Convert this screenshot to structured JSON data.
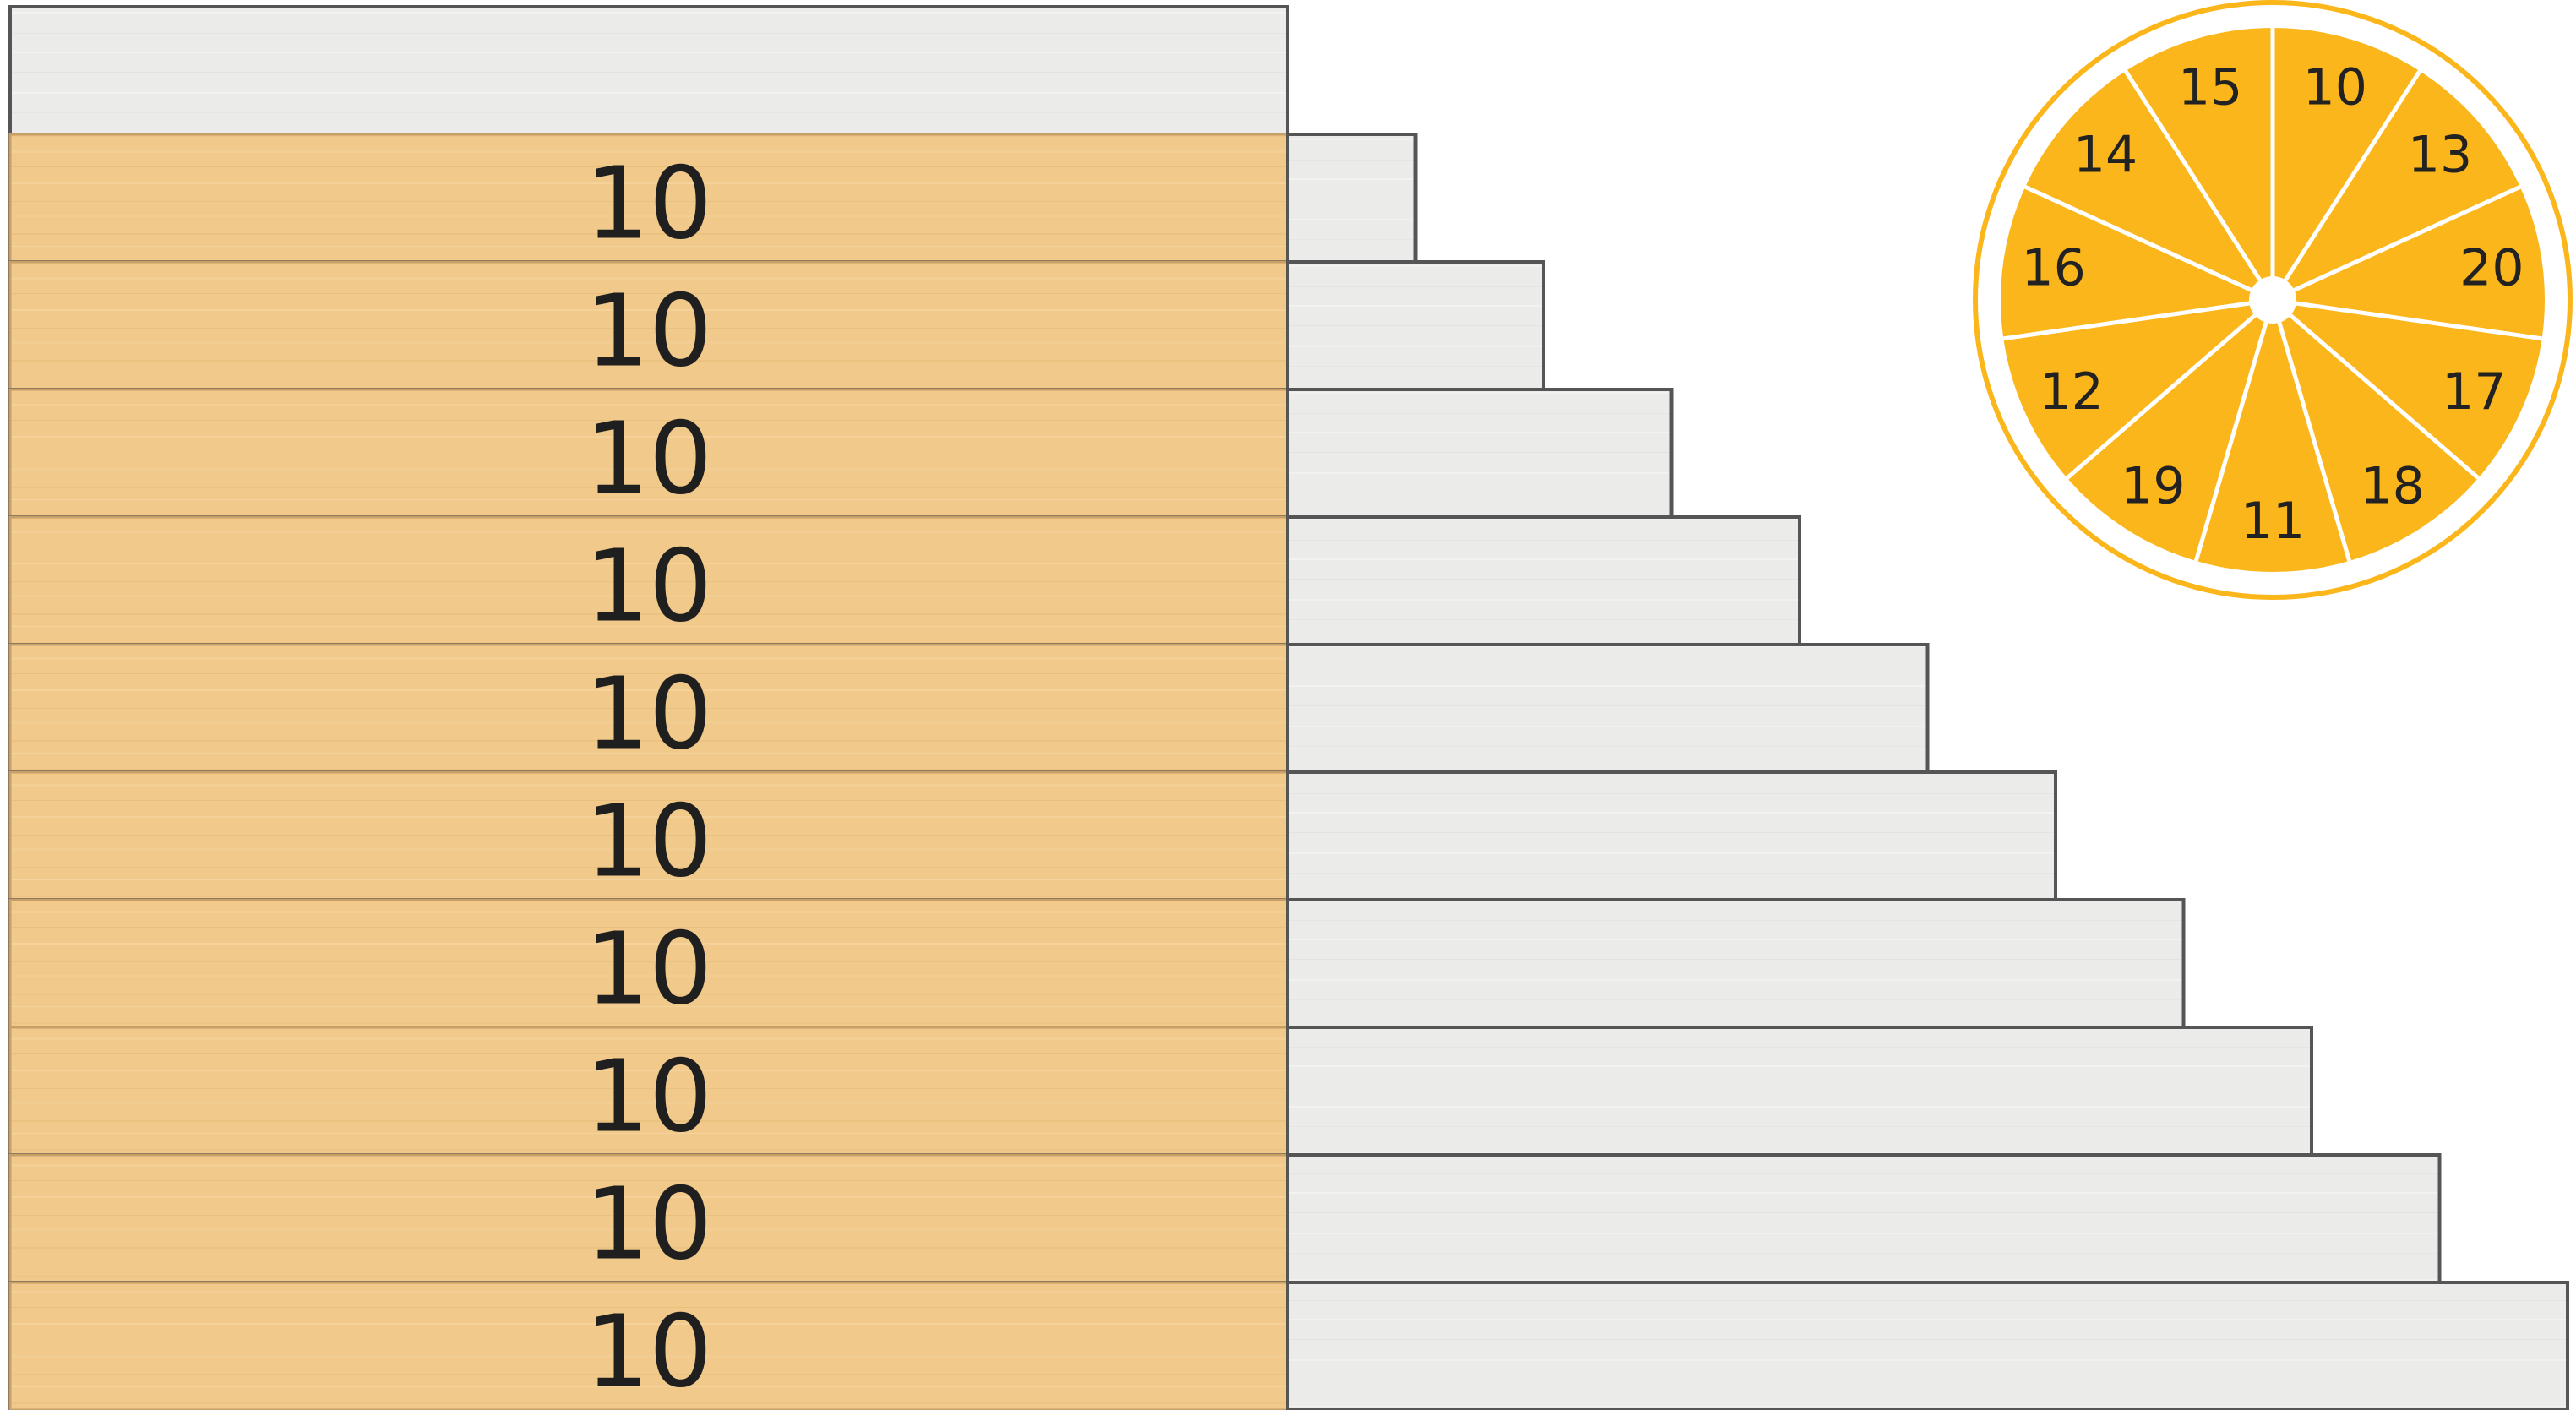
{
  "boards": {
    "rows": [
      {
        "label": "",
        "gray_extra_units": 0
      },
      {
        "label": "10",
        "gray_extra_units": 1
      },
      {
        "label": "10",
        "gray_extra_units": 2
      },
      {
        "label": "10",
        "gray_extra_units": 3
      },
      {
        "label": "10",
        "gray_extra_units": 4
      },
      {
        "label": "10",
        "gray_extra_units": 5
      },
      {
        "label": "10",
        "gray_extra_units": 6
      },
      {
        "label": "10",
        "gray_extra_units": 7
      },
      {
        "label": "10",
        "gray_extra_units": 8
      },
      {
        "label": "10",
        "gray_extra_units": 9
      },
      {
        "label": "10",
        "gray_extra_units": 10
      }
    ],
    "colors": {
      "tan_board": "#f0c98b",
      "gray_board": "#ebebea",
      "outline": "#555555"
    }
  },
  "wheel": {
    "segments": [
      "10",
      "13",
      "20",
      "17",
      "18",
      "11",
      "19",
      "12",
      "16",
      "14",
      "15"
    ],
    "colors": {
      "fill": "#fbb61b",
      "ring": "#fbb61b",
      "divider": "#ffffff"
    }
  }
}
